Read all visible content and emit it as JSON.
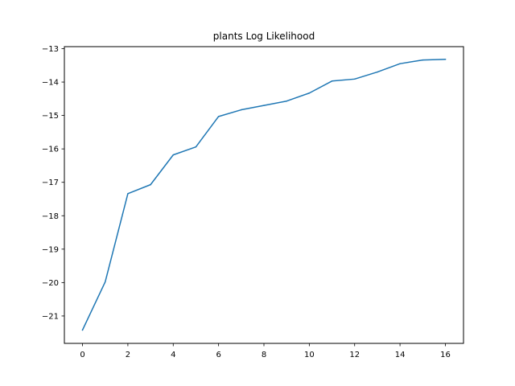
{
  "chart_data": {
    "type": "line",
    "title": "plants Log Likelihood",
    "xlabel": "",
    "ylabel": "",
    "xlim": [
      -0.8,
      16.8
    ],
    "ylim": [
      -21.82,
      -12.94
    ],
    "xticks": [
      0,
      2,
      4,
      6,
      8,
      10,
      12,
      14,
      16
    ],
    "yticks": [
      -21,
      -20,
      -19,
      -18,
      -17,
      -16,
      -15,
      -14,
      -13
    ],
    "grid": false,
    "series": [
      {
        "color": "#1f77b4",
        "x": [
          0,
          1,
          2,
          3,
          4,
          5,
          6,
          7,
          8,
          9,
          10,
          11,
          12,
          13,
          14,
          15,
          16
        ],
        "y": [
          -21.42,
          -19.98,
          -17.34,
          -17.07,
          -16.18,
          -15.94,
          -15.03,
          -14.83,
          -14.7,
          -14.57,
          -14.33,
          -13.97,
          -13.91,
          -13.7,
          -13.45,
          -13.34,
          -13.32
        ]
      }
    ]
  }
}
